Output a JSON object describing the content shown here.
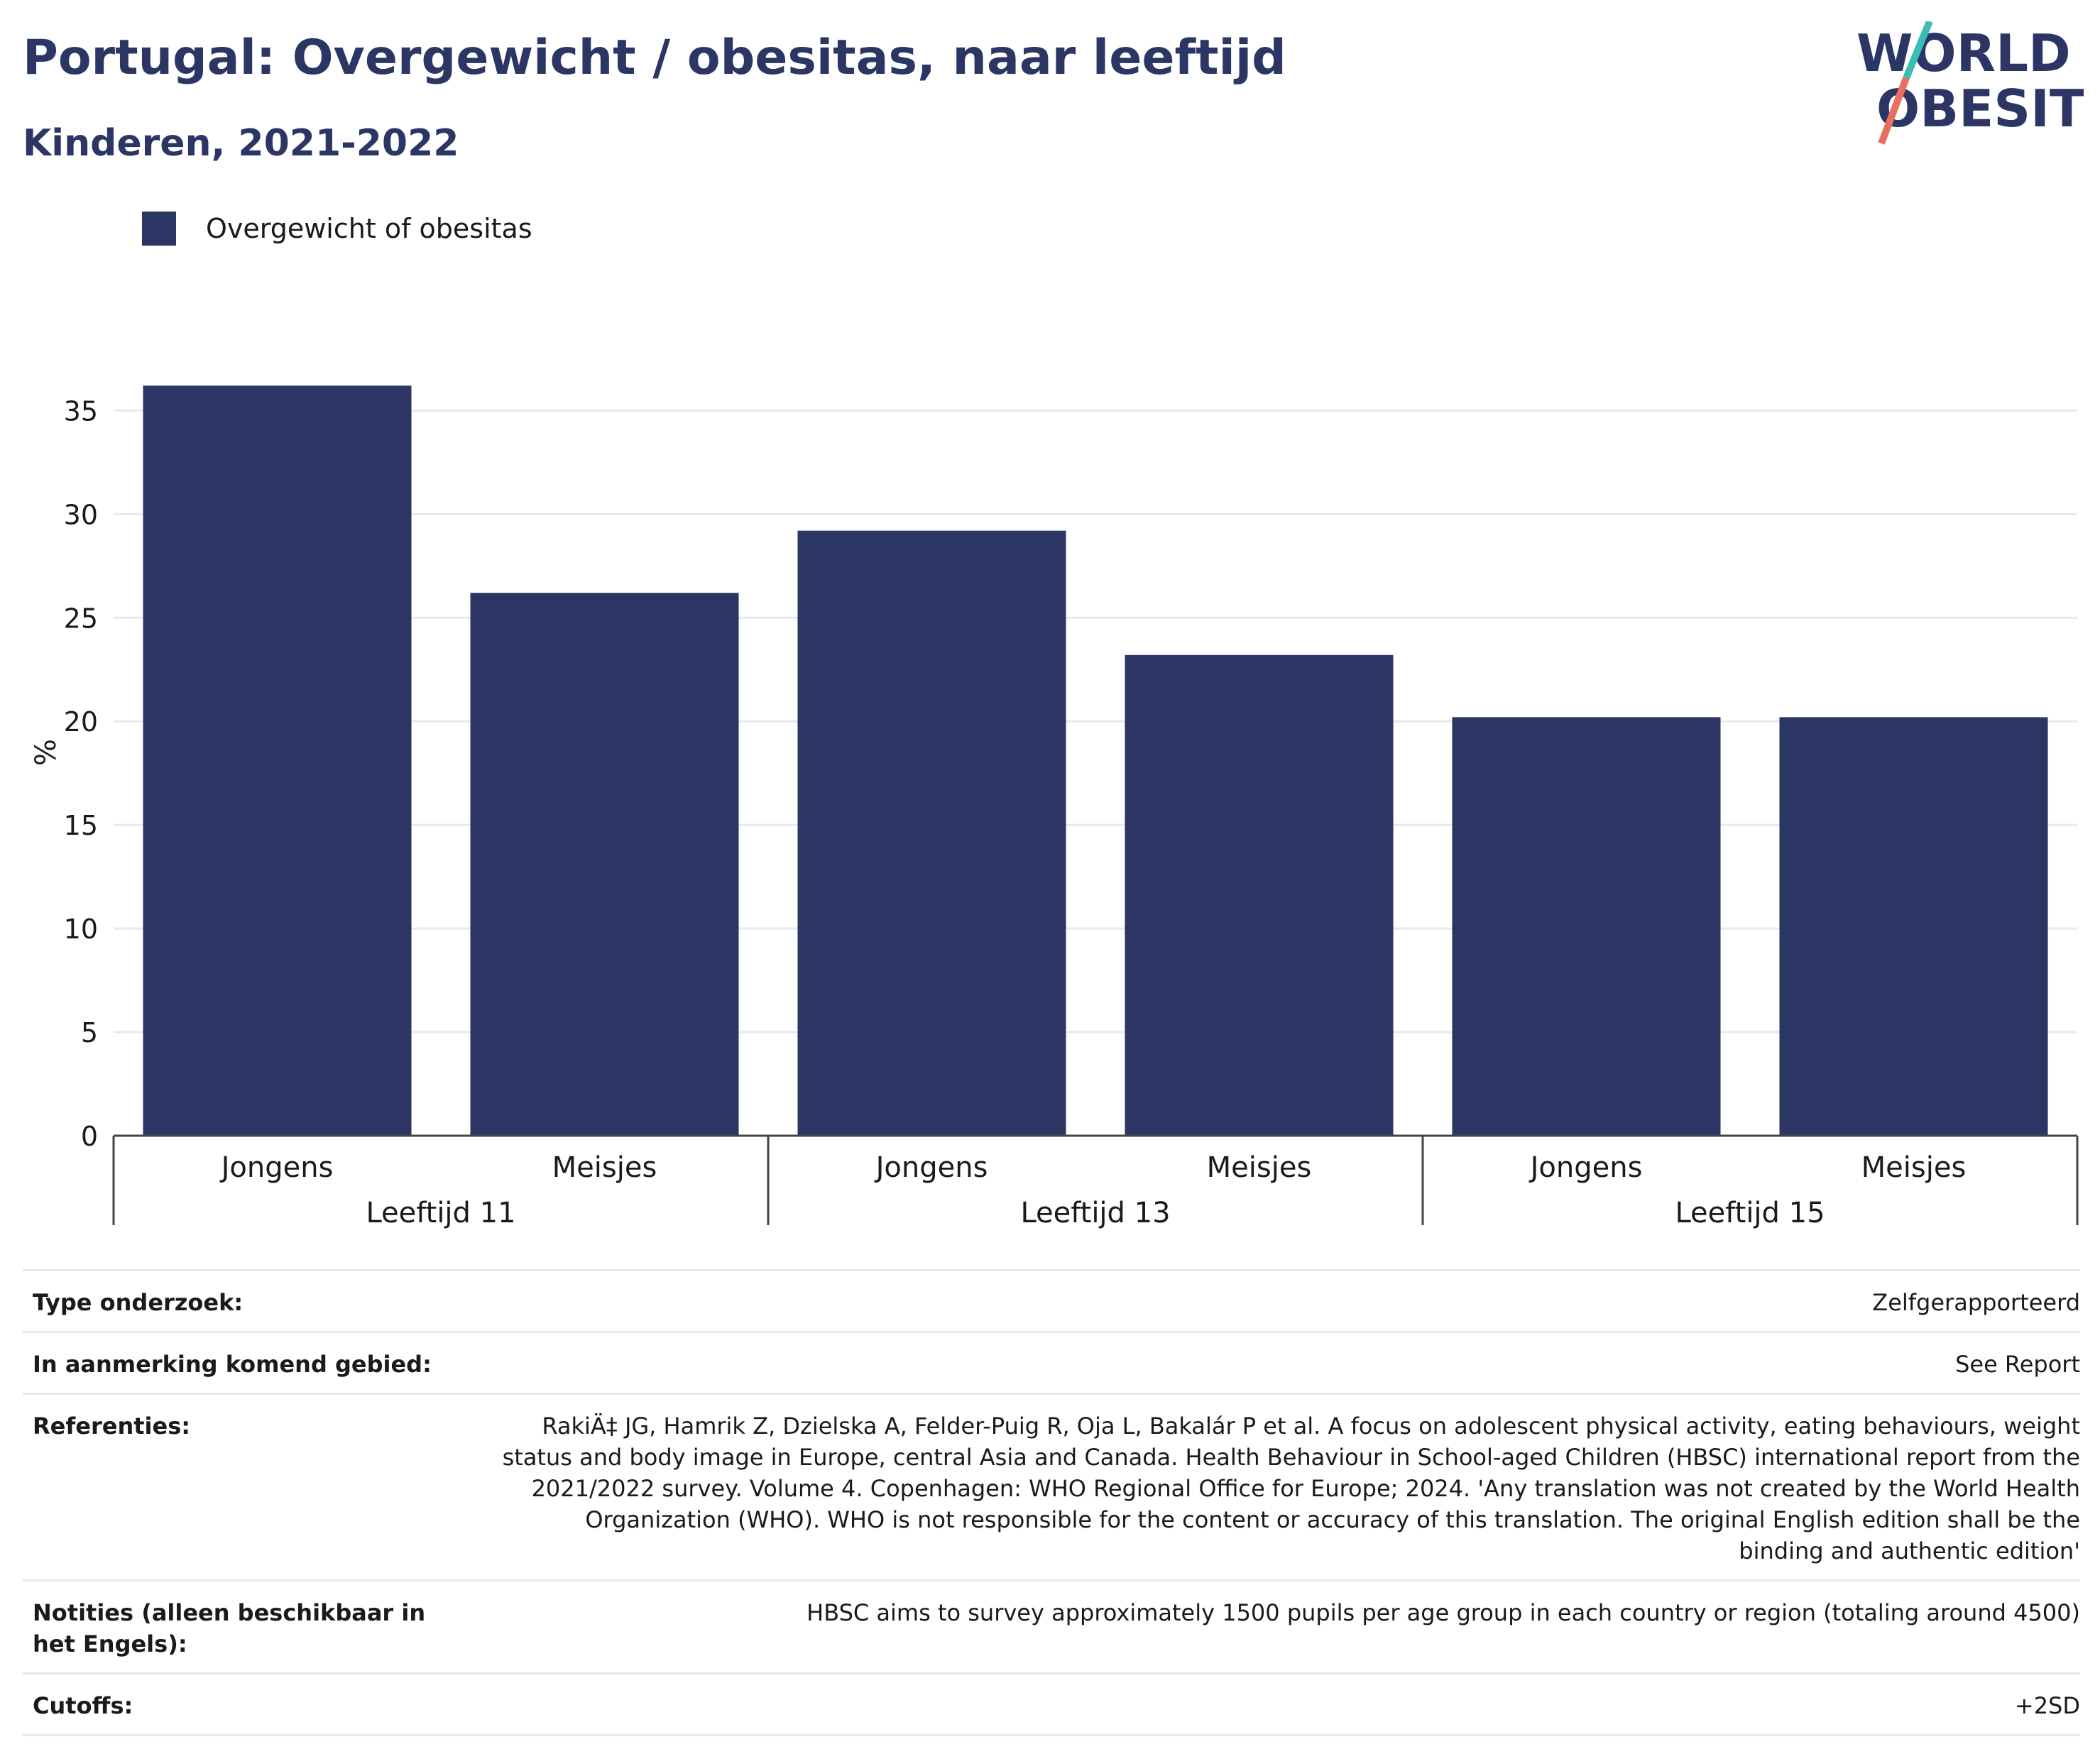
{
  "header": {
    "title": "Portugal: Overgewicht / obesitas, naar leeftijd",
    "subtitle": "Kinderen, 2021-2022"
  },
  "logo": {
    "line1": "WORLD",
    "line2": "OBESITY"
  },
  "colors": {
    "bar": "#2b3664",
    "title": "#2b3664",
    "logo_teal": "#3cbcb4",
    "logo_coral": "#e8705f",
    "grid": "#e6e9f2"
  },
  "chart_data": {
    "type": "bar",
    "ylabel": "%",
    "ylim": [
      0,
      37
    ],
    "yticks": [
      0,
      5,
      10,
      15,
      20,
      25,
      30,
      35
    ],
    "grid": true,
    "legend_position": "top-left",
    "groups": [
      {
        "label": "Leeftijd 11",
        "categories": [
          "Jongens",
          "Meisjes"
        ]
      },
      {
        "label": "Leeftijd 13",
        "categories": [
          "Jongens",
          "Meisjes"
        ]
      },
      {
        "label": "Leeftijd 15",
        "categories": [
          "Jongens",
          "Meisjes"
        ]
      }
    ],
    "series": [
      {
        "name": "Overgewicht of obesitas",
        "values": [
          36.2,
          26.2,
          29.2,
          23.2,
          20.2,
          20.2
        ]
      }
    ]
  },
  "meta": [
    {
      "label": "Type onderzoek:",
      "value": "Zelfgerapporteerd"
    },
    {
      "label": "In aanmerking komend gebied:",
      "value": "See Report"
    },
    {
      "label": "Referenties:",
      "value": "RakiÄ‡ JG, Hamrik Z, Dzielska A, Felder-Puig R, Oja L, Bakalár P et al. A focus on adolescent physical activity, eating behaviours, weight status and body image in Europe, central Asia and Canada. Health Behaviour in School-aged Children (HBSC) international report from the 2021/2022 survey. Volume 4. Copenhagen: WHO Regional Office for Europe; 2024. 'Any translation was not created by the World Health Organization (WHO). WHO is not responsible for the content or accuracy of this translation. The original English edition shall be the binding and authentic edition'"
    },
    {
      "label": "Notities (alleen beschikbaar in het Engels):",
      "value": "HBSC aims to survey approximately 1500 pupils per age group in each country or region (totaling around 4500)"
    },
    {
      "label": "Cutoffs:",
      "value": "+2SD"
    }
  ]
}
